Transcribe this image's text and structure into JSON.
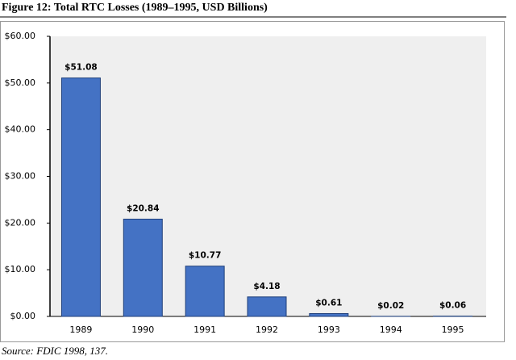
{
  "chart_data": {
    "type": "bar",
    "title": "Figure 12: Total RTC Losses (1989–1995, USD Billions)",
    "source": "Source: FDIC 1998, 137.",
    "categories": [
      "1989",
      "1990",
      "1991",
      "1992",
      "1993",
      "1994",
      "1995"
    ],
    "values": [
      51.08,
      20.84,
      10.77,
      4.18,
      0.61,
      0.02,
      0.06
    ],
    "value_labels": [
      "$51.08",
      "$20.84",
      "$10.77",
      "$4.18",
      "$0.61",
      "$0.02",
      "$0.06"
    ],
    "color": "#4472c4",
    "ylim": [
      0,
      60
    ],
    "yticks": [
      {
        "value": 0,
        "label": "$0.00"
      },
      {
        "value": 10,
        "label": "$10.00"
      },
      {
        "value": 20,
        "label": "$20.00"
      },
      {
        "value": 30,
        "label": "$30.00"
      },
      {
        "value": 40,
        "label": "$40.00"
      },
      {
        "value": 50,
        "label": "$50.00"
      },
      {
        "value": 60,
        "label": "$60.00"
      }
    ],
    "grid": false
  }
}
